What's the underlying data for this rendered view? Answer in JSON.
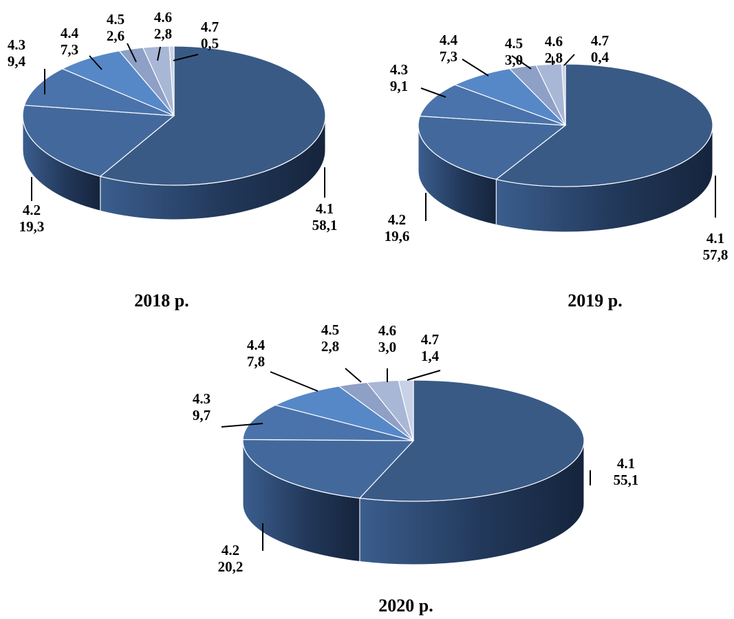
{
  "chart_data": [
    {
      "type": "pie",
      "title": "2018 р.",
      "categories": [
        "4.1",
        "4.2",
        "4.3",
        "4.4",
        "4.5",
        "4.6",
        "4.7"
      ],
      "values": [
        58.1,
        19.3,
        9.4,
        7.3,
        2.6,
        2.8,
        0.5
      ],
      "value_labels": [
        "58,1",
        "19,3",
        "9,4",
        "7,3",
        "2,6",
        "2,8",
        "0,5"
      ],
      "style": "3d-pie",
      "colors": [
        "#3a5a86",
        "#43699c",
        "#4a73ab",
        "#5688c8",
        "#8ea0c6",
        "#a9b7d6",
        "#c8d1e6"
      ]
    },
    {
      "type": "pie",
      "title": "2019 р.",
      "categories": [
        "4.1",
        "4.2",
        "4.3",
        "4.4",
        "4.5",
        "4.6",
        "4.7"
      ],
      "values": [
        57.8,
        19.6,
        9.1,
        7.3,
        3.0,
        2.8,
        0.4
      ],
      "value_labels": [
        "57,8",
        "19,6",
        "9,1",
        "7,3",
        "3,0",
        "2,8",
        "0,4"
      ],
      "style": "3d-pie",
      "colors": [
        "#3a5a86",
        "#43699c",
        "#4a73ab",
        "#5688c8",
        "#8ea0c6",
        "#a9b7d6",
        "#c8d1e6"
      ]
    },
    {
      "type": "pie",
      "title": "2020 р.",
      "categories": [
        "4.1",
        "4.2",
        "4.3",
        "4.4",
        "4.5",
        "4.6",
        "4.7"
      ],
      "values": [
        55.1,
        20.2,
        9.7,
        7.8,
        2.8,
        3.0,
        1.4
      ],
      "value_labels": [
        "55,1",
        "20,2",
        "9,7",
        "7,8",
        "2,8",
        "3,0",
        "1,4"
      ],
      "style": "3d-pie",
      "colors": [
        "#3a5a86",
        "#43699c",
        "#4a73ab",
        "#5688c8",
        "#8ea0c6",
        "#a9b7d6",
        "#c8d1e6"
      ]
    }
  ]
}
